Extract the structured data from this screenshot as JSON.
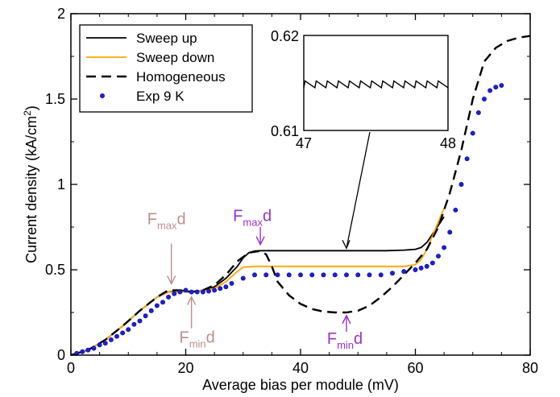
{
  "chart_data": {
    "type": "line",
    "xlabel": "Average bias per module (mV)",
    "ylabel_main": "Current density (kA/cm",
    "ylabel_sup": "2",
    "ylabel_close": ")",
    "xlim": [
      0,
      80
    ],
    "ylim": [
      0,
      2
    ],
    "x_ticks": [
      0,
      20,
      40,
      60,
      80
    ],
    "y_ticks": [
      0,
      0.5,
      1,
      1.5,
      2
    ],
    "x_tick_labels": [
      "0",
      "20",
      "40",
      "60",
      "80"
    ],
    "y_tick_labels": [
      "0",
      "0.5",
      "1",
      "1.5",
      "2"
    ],
    "grid": false,
    "legend_position": "top-left",
    "series": [
      {
        "name": "Sweep up",
        "style": "solid",
        "color": "#000000",
        "x": [
          0,
          3,
          6,
          9,
          12,
          15,
          17,
          19,
          21,
          23,
          25,
          27,
          29,
          30,
          31,
          32,
          33,
          35,
          40,
          45,
          50,
          55,
          58,
          60,
          61,
          62,
          63,
          64,
          65
        ],
        "y": [
          0,
          0.03,
          0.09,
          0.17,
          0.26,
          0.34,
          0.37,
          0.38,
          0.37,
          0.38,
          0.4,
          0.45,
          0.52,
          0.57,
          0.6,
          0.61,
          0.612,
          0.612,
          0.612,
          0.612,
          0.612,
          0.612,
          0.615,
          0.62,
          0.63,
          0.66,
          0.71,
          0.76,
          0.81
        ]
      },
      {
        "name": "Sweep down",
        "style": "solid",
        "color": "#ffa500",
        "x": [
          0,
          3,
          6,
          9,
          12,
          15,
          17,
          19,
          21,
          23,
          25,
          27,
          29,
          30,
          32,
          35,
          40,
          45,
          50,
          55,
          58,
          60,
          61,
          62,
          63,
          64,
          65
        ],
        "y": [
          0,
          0.03,
          0.09,
          0.17,
          0.26,
          0.34,
          0.37,
          0.37,
          0.37,
          0.38,
          0.39,
          0.43,
          0.49,
          0.515,
          0.52,
          0.52,
          0.52,
          0.52,
          0.52,
          0.52,
          0.52,
          0.53,
          0.56,
          0.62,
          0.7,
          0.78,
          0.86
        ]
      },
      {
        "name": "Homogeneous",
        "style": "dashed",
        "color": "#000000",
        "x": [
          0,
          3,
          6,
          9,
          12,
          15,
          17,
          19,
          21,
          23,
          25,
          27,
          29,
          31,
          33,
          34,
          35,
          36,
          38,
          40,
          42,
          44,
          46,
          48,
          50,
          52,
          54,
          56,
          58,
          60,
          62,
          64,
          66,
          68,
          70,
          72,
          74,
          76,
          78,
          80
        ],
        "y": [
          0,
          0.03,
          0.09,
          0.17,
          0.26,
          0.34,
          0.38,
          0.38,
          0.37,
          0.38,
          0.41,
          0.47,
          0.55,
          0.6,
          0.61,
          0.59,
          0.52,
          0.43,
          0.35,
          0.3,
          0.27,
          0.255,
          0.25,
          0.25,
          0.26,
          0.29,
          0.34,
          0.4,
          0.47,
          0.54,
          0.62,
          0.75,
          0.95,
          1.2,
          1.5,
          1.72,
          1.8,
          1.84,
          1.86,
          1.87
        ]
      },
      {
        "name": "Exp 9 K",
        "style": "markers",
        "color": "#1f1fe0",
        "x": [
          1,
          2,
          3,
          4,
          5,
          6,
          7,
          8,
          9,
          10,
          11,
          12,
          13,
          14,
          15,
          16,
          17,
          18,
          19,
          20,
          21,
          22,
          23,
          24,
          25,
          26,
          27,
          28,
          30,
          32,
          34,
          36,
          38,
          40,
          42,
          44,
          46,
          48,
          50,
          52,
          54,
          56,
          58,
          60,
          61,
          62,
          63,
          64,
          65,
          66,
          67,
          68,
          69,
          70,
          71,
          72,
          73,
          74,
          75
        ],
        "y": [
          0.01,
          0.02,
          0.03,
          0.04,
          0.06,
          0.07,
          0.09,
          0.11,
          0.13,
          0.15,
          0.18,
          0.2,
          0.23,
          0.26,
          0.29,
          0.31,
          0.34,
          0.36,
          0.37,
          0.38,
          0.37,
          0.37,
          0.37,
          0.375,
          0.38,
          0.39,
          0.4,
          0.42,
          0.45,
          0.47,
          0.47,
          0.47,
          0.47,
          0.47,
          0.47,
          0.47,
          0.47,
          0.47,
          0.47,
          0.47,
          0.47,
          0.48,
          0.49,
          0.5,
          0.51,
          0.52,
          0.54,
          0.58,
          0.63,
          0.72,
          0.85,
          1.0,
          1.15,
          1.3,
          1.42,
          1.5,
          1.55,
          1.57,
          1.58
        ]
      }
    ],
    "annotations": [
      {
        "main": "F",
        "sub": "max",
        "tail": "d",
        "color": "#bc8f8f",
        "x": 17.5,
        "y": 0.38
      },
      {
        "main": "F",
        "sub": "min",
        "tail": "d",
        "color": "#bc8f8f",
        "x": 21,
        "y": 0.37
      },
      {
        "main": "F",
        "sub": "max",
        "tail": "d",
        "color": "#9932cc",
        "x": 33,
        "y": 0.61
      },
      {
        "main": "F",
        "sub": "min",
        "tail": "d",
        "color": "#9932cc",
        "x": 48,
        "y": 0.25
      }
    ],
    "inset": {
      "xlim": [
        47,
        48
      ],
      "ylim": [
        0.61,
        0.62
      ],
      "x_tick_labels": [
        "47",
        "48"
      ],
      "y_tick_labels": [
        "0.61",
        "0.62"
      ],
      "sawtooth_teeth": 13,
      "sawtooth_low": 0.6145,
      "sawtooth_high": 0.6152,
      "points_to": {
        "x": 48,
        "y": 0.612
      }
    }
  }
}
